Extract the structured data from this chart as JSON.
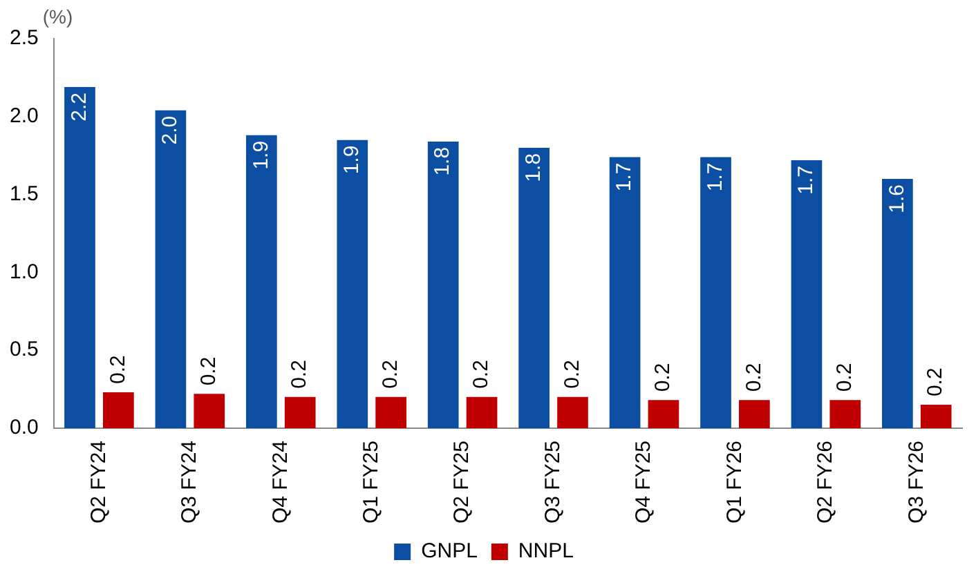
{
  "chart_data": {
    "type": "bar",
    "ylabel": "(%)",
    "categories": [
      "Q2 FY24",
      "Q3 FY24",
      "Q4 FY24",
      "Q1 FY25",
      "Q2 FY25",
      "Q3 FY25",
      "Q4 FY25",
      "Q1 FY26",
      "Q2 FY26",
      "Q3 FY26"
    ],
    "series": [
      {
        "name": "GNPL",
        "color": "#0b4ea2",
        "values": [
          2.19,
          2.04,
          1.88,
          1.85,
          1.84,
          1.8,
          1.74,
          1.74,
          1.72,
          1.6
        ],
        "value_labels": [
          "2.2",
          "2.0",
          "1.9",
          "1.9",
          "1.8",
          "1.8",
          "1.7",
          "1.7",
          "1.7",
          "1.6"
        ]
      },
      {
        "name": "NNPL",
        "color": "#c00000",
        "values": [
          0.23,
          0.22,
          0.2,
          0.2,
          0.2,
          0.2,
          0.18,
          0.18,
          0.18,
          0.15
        ],
        "value_labels": [
          "0.2",
          "0.2",
          "0.2",
          "0.2",
          "0.2",
          "0.2",
          "0.2",
          "0.2",
          "0.2",
          "0.2"
        ]
      }
    ],
    "ylim": [
      0,
      2.5
    ],
    "yticks": [
      {
        "value": 0,
        "label": "0.0"
      },
      0.5,
      {
        "value": 1,
        "label": "1.0"
      },
      1.5,
      {
        "value": 2,
        "label": "2.0"
      },
      2.5
    ],
    "grid": false,
    "legend": "bottom"
  }
}
